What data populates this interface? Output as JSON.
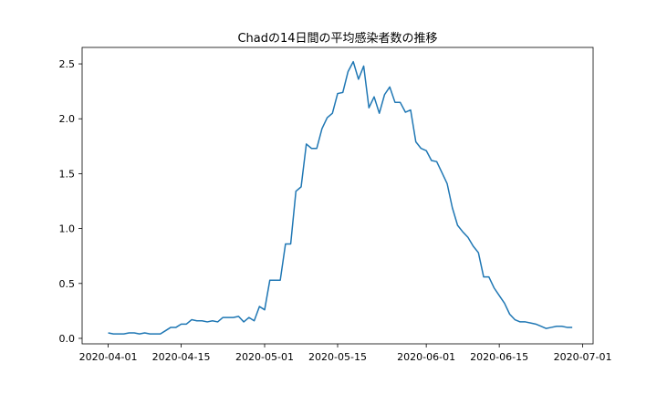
{
  "chart_data": {
    "type": "line",
    "title": "Chadの14日間の平均感染者数の推移",
    "xlabel": "",
    "ylabel": "",
    "x_start": "2020-04-01",
    "x_end": "2020-06-29",
    "xlim": [
      "2020-03-27",
      "2020-07-03"
    ],
    "ylim": [
      -0.05,
      2.65
    ],
    "grid": false,
    "legend": "none",
    "x_ticks": [
      "2020-04-01",
      "2020-04-15",
      "2020-05-01",
      "2020-05-15",
      "2020-06-01",
      "2020-06-15",
      "2020-07-01"
    ],
    "y_ticks": [
      0.0,
      0.5,
      1.0,
      1.5,
      2.0,
      2.5
    ],
    "y_tick_labels": [
      "0.0",
      "0.5",
      "1.0",
      "1.5",
      "2.0",
      "2.5"
    ],
    "line_color": "#1f77b4",
    "series": [
      {
        "values": [
          0.05,
          0.04,
          0.04,
          0.04,
          0.05,
          0.05,
          0.04,
          0.05,
          0.04,
          0.04,
          0.04,
          0.07,
          0.1,
          0.1,
          0.13,
          0.13,
          0.17,
          0.16,
          0.16,
          0.15,
          0.16,
          0.15,
          0.19,
          0.19,
          0.19,
          0.2,
          0.15,
          0.19,
          0.16,
          0.29,
          0.26,
          0.53,
          0.53,
          0.53,
          0.86,
          0.86,
          1.34,
          1.38,
          1.77,
          1.73,
          1.73,
          1.91,
          2.01,
          2.05,
          2.23,
          2.24,
          2.43,
          2.52,
          2.36,
          2.48,
          2.1,
          2.2,
          2.05,
          2.22,
          2.29,
          2.15,
          2.15,
          2.06,
          2.08,
          1.79,
          1.73,
          1.71,
          1.62,
          1.61,
          1.51,
          1.41,
          1.19,
          1.03,
          0.97,
          0.92,
          0.84,
          0.78,
          0.56,
          0.56,
          0.46,
          0.39,
          0.32,
          0.22,
          0.17,
          0.15,
          0.15,
          0.14,
          0.13,
          0.11,
          0.09,
          0.1,
          0.11,
          0.11,
          0.1,
          0.1
        ]
      }
    ]
  }
}
